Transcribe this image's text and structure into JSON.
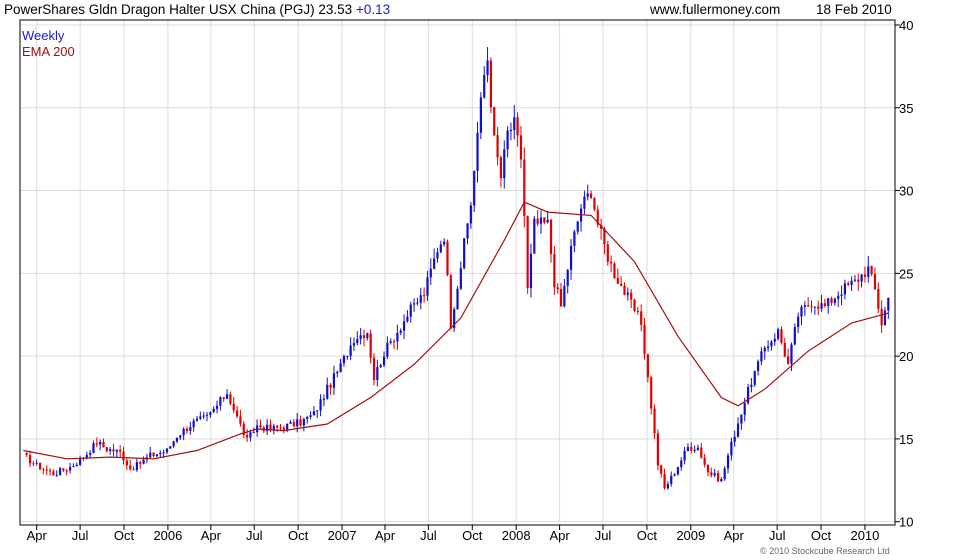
{
  "header": {
    "title": "PowerShares Gldn Dragon Halter USX China (PGJ)",
    "last": "23.53",
    "change": "+0.13",
    "site": "www.fullermoney.com",
    "date": "18 Feb 2010"
  },
  "legend": {
    "weekly": "Weekly",
    "ema": "EMA 200"
  },
  "copyright": "© 2010 Stockcube Research Ltd",
  "colors": {
    "up": "#1010c8",
    "down": "#e00000",
    "ema": "#a01010",
    "grid": "#dcdcdc",
    "axis": "#000000"
  },
  "chart_data": {
    "type": "candlestick",
    "title": "PowerShares Gldn Dragon Halter USX China (PGJ)",
    "frequency": "Weekly",
    "x_tick_labels": [
      "Apr",
      "Jul",
      "Oct",
      "2006",
      "Apr",
      "Jul",
      "Oct",
      "2007",
      "Apr",
      "Jul",
      "Oct",
      "2008",
      "Apr",
      "Jul",
      "Oct",
      "2009",
      "Apr",
      "Jul",
      "Oct",
      "2010"
    ],
    "y_ticks": [
      10,
      15,
      20,
      25,
      30,
      35,
      40
    ],
    "ylim": [
      9.8,
      40.3
    ],
    "y_axis_side": "right",
    "grid": true,
    "anchors": [
      {
        "x": "2005-03-04",
        "y": 14.0
      },
      {
        "x": "2005-04-01",
        "y": 13.4
      },
      {
        "x": "2005-05-06",
        "y": 12.9
      },
      {
        "x": "2005-06-10",
        "y": 13.3
      },
      {
        "x": "2005-07-08",
        "y": 13.9
      },
      {
        "x": "2005-08-05",
        "y": 14.8
      },
      {
        "x": "2005-08-26",
        "y": 14.4
      },
      {
        "x": "2005-09-23",
        "y": 14.2
      },
      {
        "x": "2005-10-14",
        "y": 13.2
      },
      {
        "x": "2005-10-28",
        "y": 13.4
      },
      {
        "x": "2005-11-25",
        "y": 14.0
      },
      {
        "x": "2005-12-30",
        "y": 14.3
      },
      {
        "x": "2006-01-20",
        "y": 15.2
      },
      {
        "x": "2006-02-24",
        "y": 16.0
      },
      {
        "x": "2006-03-24",
        "y": 16.3
      },
      {
        "x": "2006-04-14",
        "y": 17.0
      },
      {
        "x": "2006-05-05",
        "y": 17.8
      },
      {
        "x": "2006-05-26",
        "y": 16.3
      },
      {
        "x": "2006-06-16",
        "y": 14.9
      },
      {
        "x": "2006-07-07",
        "y": 15.8
      },
      {
        "x": "2006-08-04",
        "y": 15.6
      },
      {
        "x": "2006-09-08",
        "y": 15.8
      },
      {
        "x": "2006-10-06",
        "y": 16.0
      },
      {
        "x": "2006-11-03",
        "y": 16.5
      },
      {
        "x": "2006-12-01",
        "y": 18.0
      },
      {
        "x": "2006-12-29",
        "y": 19.4
      },
      {
        "x": "2007-01-26",
        "y": 21.1
      },
      {
        "x": "2007-02-23",
        "y": 21.5
      },
      {
        "x": "2007-03-09",
        "y": 18.7
      },
      {
        "x": "2007-03-30",
        "y": 20.2
      },
      {
        "x": "2007-04-27",
        "y": 21.5
      },
      {
        "x": "2007-05-25",
        "y": 22.8
      },
      {
        "x": "2007-06-22",
        "y": 23.8
      },
      {
        "x": "2007-07-20",
        "y": 26.5
      },
      {
        "x": "2007-08-03",
        "y": 27.3
      },
      {
        "x": "2007-08-17",
        "y": 22.0
      },
      {
        "x": "2007-09-07",
        "y": 25.5
      },
      {
        "x": "2007-09-28",
        "y": 29.2
      },
      {
        "x": "2007-10-12",
        "y": 33.5
      },
      {
        "x": "2007-10-26",
        "y": 37.0
      },
      {
        "x": "2007-11-02",
        "y": 38.0
      },
      {
        "x": "2007-11-16",
        "y": 33.0
      },
      {
        "x": "2007-11-30",
        "y": 30.8
      },
      {
        "x": "2007-12-14",
        "y": 33.5
      },
      {
        "x": "2007-12-28",
        "y": 34.0
      },
      {
        "x": "2008-01-11",
        "y": 32.0
      },
      {
        "x": "2008-01-18",
        "y": 28.5
      },
      {
        "x": "2008-01-25",
        "y": 24.0
      },
      {
        "x": "2008-02-08",
        "y": 28.0
      },
      {
        "x": "2008-03-07",
        "y": 28.0
      },
      {
        "x": "2008-03-21",
        "y": 24.5
      },
      {
        "x": "2008-04-04",
        "y": 23.0
      },
      {
        "x": "2008-04-25",
        "y": 26.5
      },
      {
        "x": "2008-05-16",
        "y": 29.0
      },
      {
        "x": "2008-06-06",
        "y": 30.0
      },
      {
        "x": "2008-06-20",
        "y": 28.0
      },
      {
        "x": "2008-07-11",
        "y": 26.0
      },
      {
        "x": "2008-07-25",
        "y": 25.0
      },
      {
        "x": "2008-08-22",
        "y": 23.5
      },
      {
        "x": "2008-09-19",
        "y": 22.0
      },
      {
        "x": "2008-10-10",
        "y": 17.0
      },
      {
        "x": "2008-10-24",
        "y": 13.5
      },
      {
        "x": "2008-11-07",
        "y": 12.0
      },
      {
        "x": "2008-11-28",
        "y": 13.0
      },
      {
        "x": "2008-12-26",
        "y": 14.5
      },
      {
        "x": "2009-01-16",
        "y": 14.5
      },
      {
        "x": "2009-02-06",
        "y": 13.0
      },
      {
        "x": "2009-03-06",
        "y": 12.5
      },
      {
        "x": "2009-03-20",
        "y": 14.0
      },
      {
        "x": "2009-04-10",
        "y": 16.0
      },
      {
        "x": "2009-05-08",
        "y": 18.5
      },
      {
        "x": "2009-06-05",
        "y": 20.5
      },
      {
        "x": "2009-07-03",
        "y": 21.5
      },
      {
        "x": "2009-07-24",
        "y": 19.5
      },
      {
        "x": "2009-08-14",
        "y": 22.5
      },
      {
        "x": "2009-09-11",
        "y": 23.3
      },
      {
        "x": "2009-10-09",
        "y": 23.0
      },
      {
        "x": "2009-11-13",
        "y": 24.0
      },
      {
        "x": "2009-12-11",
        "y": 24.5
      },
      {
        "x": "2010-01-08",
        "y": 25.3
      },
      {
        "x": "2010-01-22",
        "y": 24.0
      },
      {
        "x": "2010-02-05",
        "y": 22.0
      },
      {
        "x": "2010-02-19",
        "y": 23.5
      }
    ],
    "ema200": [
      {
        "x": "2005-03-04",
        "y": 14.3
      },
      {
        "x": "2005-06-03",
        "y": 13.8
      },
      {
        "x": "2005-09-02",
        "y": 13.9
      },
      {
        "x": "2005-12-02",
        "y": 13.8
      },
      {
        "x": "2006-03-03",
        "y": 14.3
      },
      {
        "x": "2006-06-02",
        "y": 15.3
      },
      {
        "x": "2006-07-07",
        "y": 15.6
      },
      {
        "x": "2006-09-01",
        "y": 15.5
      },
      {
        "x": "2006-12-01",
        "y": 15.9
      },
      {
        "x": "2007-03-02",
        "y": 17.5
      },
      {
        "x": "2007-06-01",
        "y": 19.5
      },
      {
        "x": "2007-09-07",
        "y": 22.3
      },
      {
        "x": "2007-12-07",
        "y": 27.0
      },
      {
        "x": "2008-01-18",
        "y": 29.3
      },
      {
        "x": "2008-03-07",
        "y": 28.7
      },
      {
        "x": "2008-06-06",
        "y": 28.5
      },
      {
        "x": "2008-09-05",
        "y": 25.7
      },
      {
        "x": "2008-12-05",
        "y": 21.2
      },
      {
        "x": "2009-03-06",
        "y": 17.5
      },
      {
        "x": "2009-04-10",
        "y": 17.0
      },
      {
        "x": "2009-06-05",
        "y": 18.0
      },
      {
        "x": "2009-09-04",
        "y": 20.3
      },
      {
        "x": "2009-12-04",
        "y": 22.0
      },
      {
        "x": "2010-02-19",
        "y": 22.6
      }
    ]
  }
}
